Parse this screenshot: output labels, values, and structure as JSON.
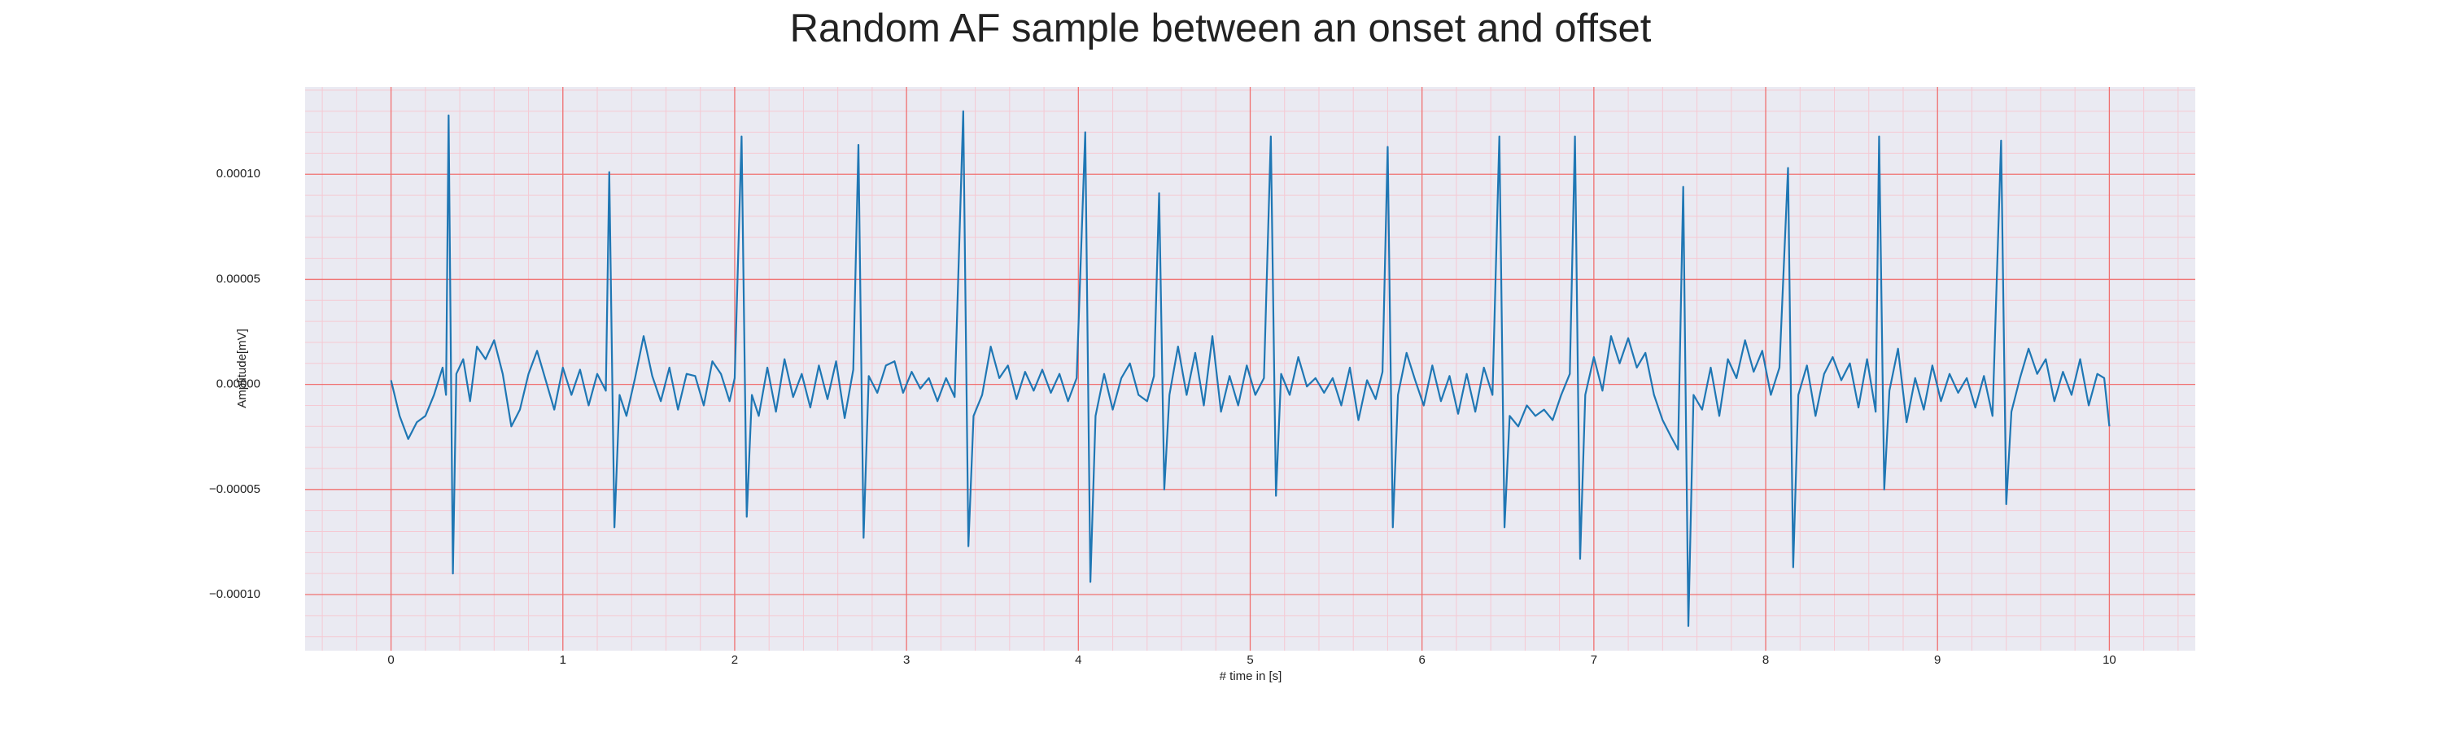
{
  "chart_data": {
    "type": "line",
    "title": "Random AF sample between an onset and offset",
    "x_label": "# time in [s]",
    "y_label": "Amplitude[mV]",
    "color": "#1f77b4",
    "background": "#eaeaf2",
    "grid": true,
    "grid_color": "#f07070",
    "minor_grid_color": "#f5c9d3",
    "xlim": [
      -0.5,
      10.5
    ],
    "ylim": [
      -0.0001267,
      0.0001415
    ],
    "xticks": [
      0,
      1,
      2,
      3,
      4,
      5,
      6,
      7,
      8,
      9,
      10
    ],
    "yticks": [
      {
        "value": -0.0001,
        "label": "−0.00010"
      },
      {
        "value": -5e-05,
        "label": "−0.00005"
      },
      {
        "value": 0,
        "label": "0.00000"
      },
      {
        "value": 5e-05,
        "label": "0.00005"
      },
      {
        "value": 0.0001,
        "label": "0.00010"
      }
    ],
    "xminorticks": [
      -0.4,
      -0.2,
      0.2,
      0.4,
      0.6,
      0.8,
      1.2,
      1.4,
      1.6,
      1.8,
      2.2,
      2.4,
      2.6,
      2.8,
      3.2,
      3.4,
      3.6,
      3.8,
      4.2,
      4.4,
      4.6,
      4.8,
      5.2,
      5.4,
      5.6,
      5.8,
      6.2,
      6.4,
      6.6,
      6.8,
      7.2,
      7.4,
      7.6,
      7.8,
      8.2,
      8.4,
      8.6,
      8.8,
      9.2,
      9.4,
      9.6,
      9.8,
      10.2,
      10.4
    ],
    "yminorticks": [
      -0.00012,
      -0.00011,
      -9e-05,
      -8e-05,
      -7e-05,
      -6e-05,
      -4e-05,
      -3e-05,
      -2e-05,
      -1e-05,
      1e-05,
      2e-05,
      3e-05,
      4e-05,
      6e-05,
      7e-05,
      8e-05,
      9e-05,
      0.00011,
      0.00012,
      0.00013,
      0.00014
    ],
    "x": [
      0,
      0.05,
      0.1,
      0.15,
      0.2,
      0.25,
      0.3,
      0.32,
      0.335,
      0.36,
      0.38,
      0.42,
      0.46,
      0.5,
      0.55,
      0.6,
      0.65,
      0.7,
      0.75,
      0.8,
      0.85,
      0.9,
      0.95,
      1,
      1.05,
      1.1,
      1.15,
      1.2,
      1.25,
      1.27,
      1.3,
      1.33,
      1.37,
      1.42,
      1.47,
      1.52,
      1.57,
      1.62,
      1.67,
      1.72,
      1.77,
      1.82,
      1.87,
      1.92,
      1.97,
      2,
      2.04,
      2.07,
      2.1,
      2.14,
      2.19,
      2.24,
      2.29,
      2.34,
      2.39,
      2.44,
      2.49,
      2.54,
      2.59,
      2.64,
      2.69,
      2.72,
      2.75,
      2.78,
      2.83,
      2.88,
      2.93,
      2.98,
      3.03,
      3.08,
      3.13,
      3.18,
      3.23,
      3.28,
      3.33,
      3.36,
      3.39,
      3.44,
      3.49,
      3.54,
      3.59,
      3.64,
      3.69,
      3.74,
      3.79,
      3.84,
      3.89,
      3.94,
      3.99,
      4.04,
      4.07,
      4.1,
      4.15,
      4.2,
      4.25,
      4.3,
      4.35,
      4.4,
      4.44,
      4.47,
      4.5,
      4.53,
      4.58,
      4.63,
      4.68,
      4.73,
      4.78,
      4.83,
      4.88,
      4.93,
      4.98,
      5.03,
      5.08,
      5.12,
      5.15,
      5.18,
      5.23,
      5.28,
      5.33,
      5.38,
      5.43,
      5.48,
      5.53,
      5.58,
      5.63,
      5.68,
      5.73,
      5.77,
      5.8,
      5.83,
      5.86,
      5.91,
      5.96,
      6.01,
      6.06,
      6.11,
      6.16,
      6.21,
      6.26,
      6.31,
      6.36,
      6.41,
      6.45,
      6.48,
      6.51,
      6.56,
      6.61,
      6.66,
      6.71,
      6.76,
      6.81,
      6.86,
      6.89,
      6.92,
      6.95,
      7,
      7.05,
      7.1,
      7.15,
      7.2,
      7.25,
      7.3,
      7.35,
      7.4,
      7.45,
      7.49,
      7.52,
      7.55,
      7.58,
      7.63,
      7.68,
      7.73,
      7.78,
      7.83,
      7.88,
      7.93,
      7.98,
      8.03,
      8.08,
      8.13,
      8.16,
      8.19,
      8.24,
      8.29,
      8.34,
      8.39,
      8.44,
      8.49,
      8.54,
      8.59,
      8.64,
      8.66,
      8.69,
      8.72,
      8.77,
      8.82,
      8.87,
      8.92,
      8.97,
      9.02,
      9.07,
      9.12,
      9.17,
      9.22,
      9.27,
      9.32,
      9.37,
      9.4,
      9.43,
      9.48,
      9.53,
      9.58,
      9.63,
      9.68,
      9.73,
      9.78,
      9.83,
      9.88,
      9.93,
      9.97,
      10
    ],
    "values": [
      2e-06,
      -1.5e-05,
      -2.6e-05,
      -1.8e-05,
      -1.5e-05,
      -5e-06,
      8e-06,
      -5e-06,
      0.000128,
      -9e-05,
      5e-06,
      1.2e-05,
      -8e-06,
      1.8e-05,
      1.2e-05,
      2.1e-05,
      5e-06,
      -2e-05,
      -1.2e-05,
      5e-06,
      1.6e-05,
      2e-06,
      -1.2e-05,
      8e-06,
      -5e-06,
      7e-06,
      -1e-05,
      5e-06,
      -3e-06,
      0.000101,
      -6.8e-05,
      -5e-06,
      -1.5e-05,
      3e-06,
      2.3e-05,
      4e-06,
      -8e-06,
      8e-06,
      -1.2e-05,
      5e-06,
      4e-06,
      -1e-05,
      1.1e-05,
      5e-06,
      -8e-06,
      3e-06,
      0.000118,
      -6.3e-05,
      -5e-06,
      -1.5e-05,
      8e-06,
      -1.3e-05,
      1.2e-05,
      -6e-06,
      5e-06,
      -1.1e-05,
      9e-06,
      -7e-06,
      1.1e-05,
      -1.6e-05,
      7e-06,
      0.000114,
      -7.3e-05,
      4e-06,
      -4e-06,
      9e-06,
      1.1e-05,
      -4e-06,
      6e-06,
      -2e-06,
      3e-06,
      -8e-06,
      3e-06,
      -6e-06,
      0.00013,
      -7.7e-05,
      -1.5e-05,
      -5e-06,
      1.8e-05,
      3e-06,
      9e-06,
      -7e-06,
      6e-06,
      -3e-06,
      7e-06,
      -4e-06,
      5e-06,
      -8e-06,
      3e-06,
      0.00012,
      -9.4e-05,
      -1.5e-05,
      5e-06,
      -1.2e-05,
      3e-06,
      1e-05,
      -5e-06,
      -8e-06,
      4e-06,
      9.1e-05,
      -5e-05,
      -5e-06,
      1.8e-05,
      -5e-06,
      1.5e-05,
      -1e-05,
      2.3e-05,
      -1.3e-05,
      4e-06,
      -1e-05,
      9e-06,
      -5e-06,
      3e-06,
      0.000118,
      -5.3e-05,
      5e-06,
      -5e-06,
      1.3e-05,
      -1e-06,
      3e-06,
      -4e-06,
      3e-06,
      -1e-05,
      8e-06,
      -1.7e-05,
      2e-06,
      -7e-06,
      6e-06,
      0.000113,
      -6.8e-05,
      -5e-06,
      1.5e-05,
      2e-06,
      -1e-05,
      9e-06,
      -8e-06,
      4e-06,
      -1.4e-05,
      5e-06,
      -1.3e-05,
      8e-06,
      -5e-06,
      0.000118,
      -6.8e-05,
      -1.5e-05,
      -2e-05,
      -1e-05,
      -1.5e-05,
      -1.2e-05,
      -1.7e-05,
      -5e-06,
      5e-06,
      0.000118,
      -8.3e-05,
      -5e-06,
      1.3e-05,
      -3e-06,
      2.3e-05,
      1e-05,
      2.2e-05,
      8e-06,
      1.5e-05,
      -5e-06,
      -1.7e-05,
      -2.5e-05,
      -3.1e-05,
      9.4e-05,
      -0.000115,
      -5e-06,
      -1.2e-05,
      8e-06,
      -1.5e-05,
      1.2e-05,
      3e-06,
      2.1e-05,
      6e-06,
      1.6e-05,
      -5e-06,
      8e-06,
      0.000103,
      -8.7e-05,
      -5e-06,
      9e-06,
      -1.5e-05,
      5e-06,
      1.3e-05,
      2e-06,
      1e-05,
      -1.1e-05,
      1.2e-05,
      -1.3e-05,
      0.000118,
      -5e-05,
      -3e-06,
      1.7e-05,
      -1.8e-05,
      3e-06,
      -1.2e-05,
      9e-06,
      -8e-06,
      5e-06,
      -4e-06,
      3e-06,
      -1.1e-05,
      4e-06,
      -1.5e-05,
      0.000116,
      -5.7e-05,
      -1.3e-05,
      3e-06,
      1.7e-05,
      5e-06,
      1.2e-05,
      -8e-06,
      6e-06,
      -5e-06,
      1.2e-05,
      -1e-05,
      5e-06,
      3e-06,
      -2e-05
    ]
  }
}
